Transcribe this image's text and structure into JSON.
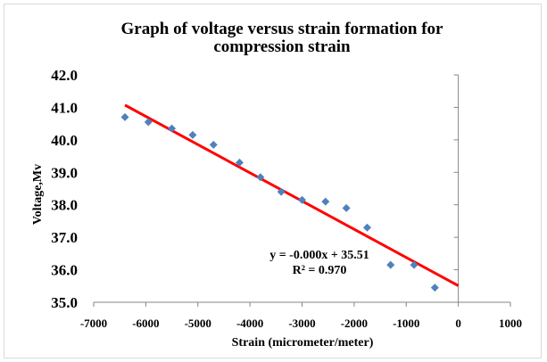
{
  "chart_data": {
    "type": "scatter",
    "title": "Graph of voltage versus strain formation for compression strain",
    "title_lines": [
      "Graph of voltage versus strain formation for",
      "compression strain"
    ],
    "xlabel": "Strain (micrometer/meter)",
    "ylabel": "Voltage,Mv",
    "xlim": [
      -7000,
      1000
    ],
    "ylim": [
      35.0,
      42.0
    ],
    "x_ticks": [
      -7000,
      -6000,
      -5000,
      -4000,
      -3000,
      -2000,
      -1000,
      0,
      1000
    ],
    "y_ticks": [
      "35.0",
      "36.0",
      "37.0",
      "38.0",
      "39.0",
      "40.0",
      "41.0",
      "42.0"
    ],
    "grid": false,
    "series": [
      {
        "marker": "diamond",
        "color": "#4f81bd",
        "x": [
          -6400,
          -5950,
          -5500,
          -5100,
          -4700,
          -4200,
          -3800,
          -3400,
          -3000,
          -2550,
          -2150,
          -1750,
          -1300,
          -850,
          -450
        ],
        "y": [
          40.7,
          40.55,
          40.35,
          40.15,
          39.85,
          39.3,
          38.85,
          38.4,
          38.15,
          38.1,
          37.9,
          37.3,
          36.15,
          36.15,
          35.45
        ]
      }
    ],
    "trendline": {
      "color": "#ff0000",
      "x": [
        -6400,
        0
      ],
      "y": [
        41.07,
        35.51
      ],
      "equation": "y = -0.000x + 35.51",
      "r_squared": "R² = 0.970"
    }
  }
}
